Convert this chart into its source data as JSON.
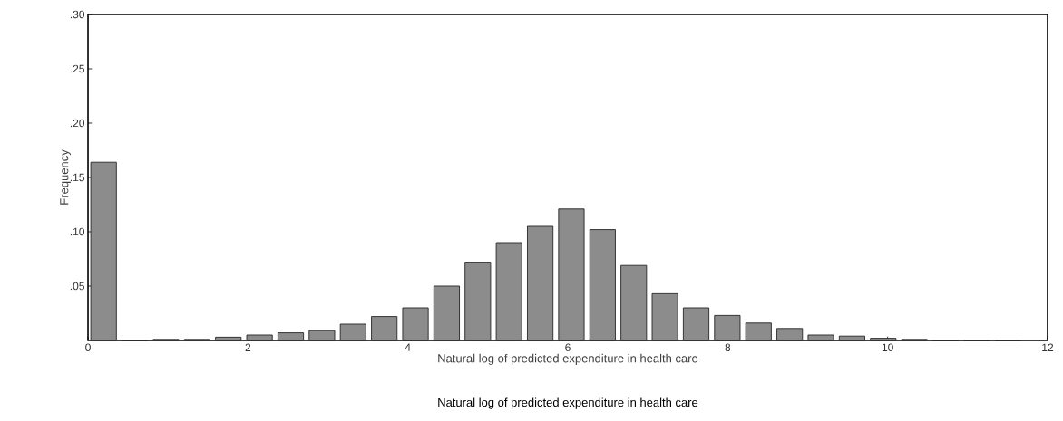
{
  "chart_data": {
    "type": "histogram",
    "xlabel": "Natural log of predicted expenditure in health care",
    "ylabel": "Frequency",
    "annotations": [
      "Natural log of predicted expenditure in health care"
    ],
    "bins": [
      0,
      0.39,
      0.78,
      1.17,
      1.56,
      1.95,
      2.34,
      2.73,
      3.12,
      3.51,
      3.9,
      4.29,
      4.68,
      5.07,
      5.46,
      5.85,
      6.24,
      6.63,
      7.02,
      7.41,
      7.8,
      8.19,
      8.58,
      8.97,
      9.36,
      9.75,
      10.14,
      10.53,
      10.92,
      11.31,
      11.7
    ],
    "values": [
      0.164,
      0,
      0.001,
      0.001,
      0.003,
      0.005,
      0.007,
      0.009,
      0.015,
      0.022,
      0.03,
      0.05,
      0.072,
      0.09,
      0.105,
      0.121,
      0.102,
      0.069,
      0.043,
      0.03,
      0.023,
      0.016,
      0.011,
      0.005,
      0.004,
      0.002,
      0.001,
      0,
      0,
      0
    ],
    "color": "#8c8c8c",
    "xlim": [
      0,
      12
    ],
    "xticks": [
      0,
      2,
      4,
      6,
      8,
      10,
      12
    ],
    "ylim": [
      0,
      0.3
    ],
    "yticks": [
      {
        "value": 0.05,
        "label": ".05"
      },
      {
        "value": 0.1,
        "label": ".10"
      },
      {
        "value": 0.15,
        "label": ".15"
      },
      {
        "value": 0.2,
        "label": ".20"
      },
      {
        "value": 0.25,
        "label": ".25"
      },
      {
        "value": 0.3,
        "label": ".30"
      }
    ],
    "grid": false
  }
}
